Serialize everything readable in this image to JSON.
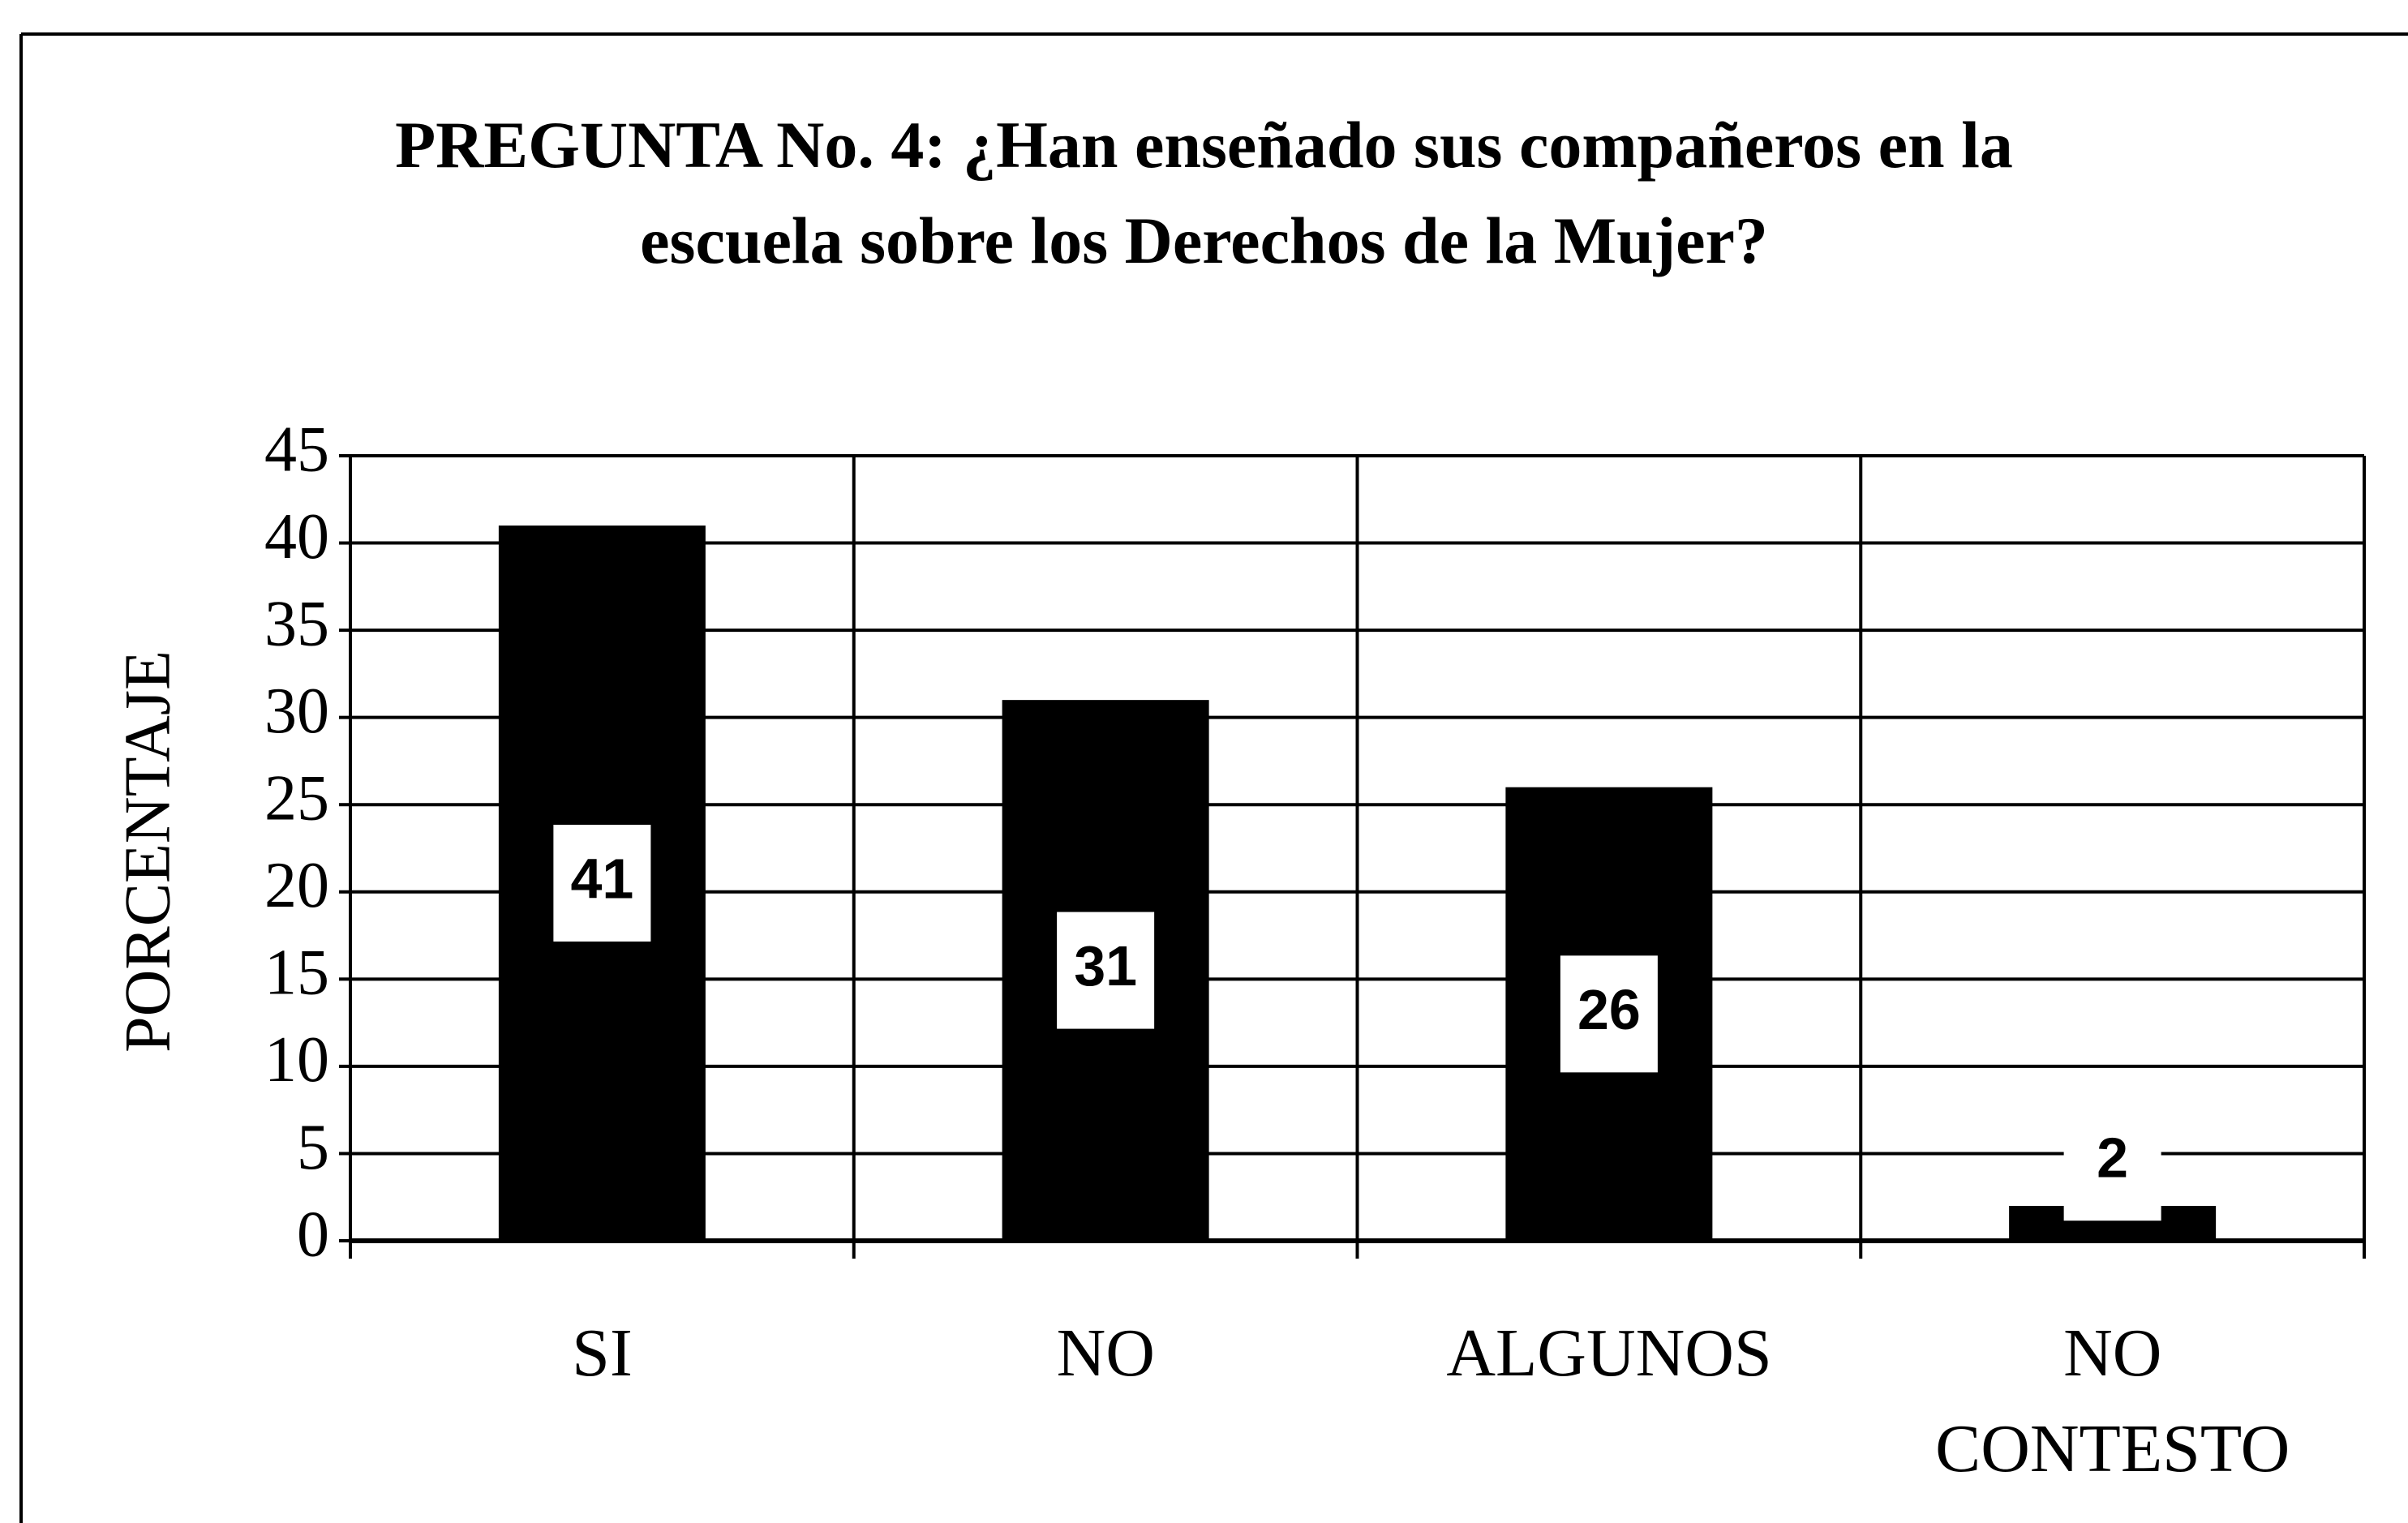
{
  "chart_data": {
    "type": "bar",
    "title": "PREGUNTA No. 4:  ¿Han enseñado sus compañeros en la\nescuela sobre los Derechos de la Mujer?",
    "ylabel": "PORCENTAJE",
    "categories": [
      "SI",
      "NO",
      "ALGUNOS",
      "NO\nCONTESTO"
    ],
    "values": [
      41,
      31,
      26,
      2
    ],
    "color": "#000000",
    "ylim": [
      0,
      45
    ],
    "yticks": [
      0,
      5,
      10,
      15,
      20,
      25,
      30,
      35,
      40,
      45
    ],
    "grid": true
  }
}
